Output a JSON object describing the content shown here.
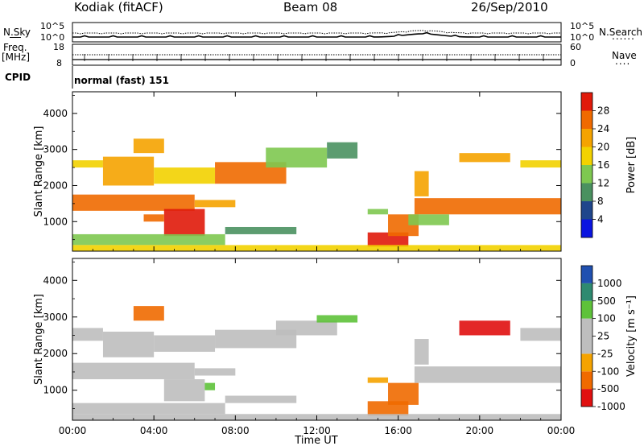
{
  "header": {
    "station": "Kodiak (fitACF)",
    "beam": "Beam 08",
    "date": "26/Sep/2010"
  },
  "top_panel": {
    "left_label": "N.Sky",
    "right_label": "N.Search",
    "left_ticks": [
      "10^5",
      "10^0"
    ],
    "right_ticks": [
      "10^5",
      "10^0"
    ]
  },
  "freq_panel": {
    "left_label_1": "Freq.",
    "left_label_2": "[MHz]",
    "right_label": "Nave",
    "left_ticks": [
      "18",
      "8"
    ],
    "right_ticks": [
      "60",
      "0"
    ]
  },
  "cpid": {
    "label": "CPID",
    "value": "normal (fast) 151"
  },
  "colors": {
    "power": [
      "#0a14e0",
      "#20468c",
      "#4a9160",
      "#7ec850",
      "#f2d200",
      "#f5a300",
      "#f06a00",
      "#e01a0a"
    ],
    "velocity": [
      "#e01010",
      "#f06a00",
      "#f5a300",
      "#bebebe",
      "#bebebe",
      "#5ec23a",
      "#2e8a70",
      "#2050b0"
    ],
    "gray": "#bebebe"
  },
  "chart_data": [
    {
      "type": "heatmap",
      "title": "",
      "ylabel": "Slant Range [km]",
      "xlabel": "",
      "xlim_hours": [
        0,
        24
      ],
      "ylim": [
        180,
        4600
      ],
      "y_ticks": [
        1000,
        2000,
        3000,
        4000
      ],
      "x_ticks": [
        "00:00",
        "04:00",
        "08:00",
        "12:00",
        "16:00",
        "20:00",
        "00:00"
      ],
      "colorbar": {
        "label": "Power [dB]",
        "ticks": [
          "28",
          "24",
          "20",
          "16",
          "12",
          "8",
          "4"
        ],
        "range": [
          0,
          32
        ]
      },
      "regions": [
        {
          "t0": 0.0,
          "t1": 6.0,
          "r0": 1300,
          "r1": 1750,
          "value": 24
        },
        {
          "t0": 6.0,
          "t1": 8.0,
          "r0": 1400,
          "r1": 1600,
          "value": 20
        },
        {
          "t0": 0.0,
          "t1": 1.5,
          "r0": 2500,
          "r1": 2700,
          "value": 16
        },
        {
          "t0": 1.5,
          "t1": 4.0,
          "r0": 2000,
          "r1": 2800,
          "value": 22
        },
        {
          "t0": 4.0,
          "t1": 7.0,
          "r0": 2050,
          "r1": 2500,
          "value": 18
        },
        {
          "t0": 7.0,
          "t1": 10.5,
          "r0": 2050,
          "r1": 2650,
          "value": 24
        },
        {
          "t0": 9.5,
          "t1": 12.5,
          "r0": 2500,
          "r1": 3050,
          "value": 14
        },
        {
          "t0": 12.5,
          "t1": 14.0,
          "r0": 2750,
          "r1": 3200,
          "value": 8
        },
        {
          "t0": 3.0,
          "t1": 4.5,
          "r0": 2900,
          "r1": 3300,
          "value": 20
        },
        {
          "t0": 4.5,
          "t1": 6.5,
          "r0": 600,
          "r1": 1350,
          "value": 28
        },
        {
          "t0": 3.5,
          "t1": 4.5,
          "r0": 1000,
          "r1": 1200,
          "value": 24
        },
        {
          "t0": 0.0,
          "t1": 7.5,
          "r0": 350,
          "r1": 650,
          "value": 12
        },
        {
          "t0": 7.5,
          "t1": 11.0,
          "r0": 650,
          "r1": 850,
          "value": 8
        },
        {
          "t0": 14.5,
          "t1": 16.5,
          "r0": 300,
          "r1": 700,
          "value": 28
        },
        {
          "t0": 15.5,
          "t1": 17.0,
          "r0": 600,
          "r1": 1200,
          "value": 26
        },
        {
          "t0": 14.5,
          "t1": 15.5,
          "r0": 1200,
          "r1": 1350,
          "value": 12
        },
        {
          "t0": 16.8,
          "t1": 17.5,
          "r0": 1700,
          "r1": 2400,
          "value": 20
        },
        {
          "t0": 16.8,
          "t1": 24.0,
          "r0": 1200,
          "r1": 1650,
          "value": 26
        },
        {
          "t0": 19.0,
          "t1": 21.5,
          "r0": 2650,
          "r1": 2900,
          "value": 20
        },
        {
          "t0": 22.0,
          "t1": 24.0,
          "r0": 2500,
          "r1": 2700,
          "value": 16
        },
        {
          "t0": 0.0,
          "t1": 24.0,
          "r0": 180,
          "r1": 350,
          "value": 16
        },
        {
          "t0": 16.5,
          "t1": 18.5,
          "r0": 900,
          "r1": 1200,
          "value": 14
        }
      ]
    },
    {
      "type": "heatmap",
      "title": "",
      "ylabel": "Slant Range [km]",
      "xlabel": "Time UT",
      "xlim_hours": [
        0,
        24
      ],
      "ylim": [
        180,
        4600
      ],
      "y_ticks": [
        1000,
        2000,
        3000,
        4000
      ],
      "x_ticks": [
        "00:00",
        "04:00",
        "08:00",
        "12:00",
        "16:00",
        "20:00",
        "00:00"
      ],
      "colorbar": {
        "label": "Velocity [m s⁻¹]",
        "ticks": [
          "1000",
          "500",
          "100",
          "25",
          "-25",
          "-100",
          "-500",
          "-1000"
        ],
        "range": [
          -1200,
          1200
        ]
      },
      "regions": [
        {
          "t0": 0.0,
          "t1": 6.0,
          "r0": 1300,
          "r1": 1750,
          "value": 0
        },
        {
          "t0": 6.0,
          "t1": 8.0,
          "r0": 1400,
          "r1": 1600,
          "value": 0
        },
        {
          "t0": 0.0,
          "t1": 1.5,
          "r0": 2350,
          "r1": 2700,
          "value": 0
        },
        {
          "t0": 1.5,
          "t1": 4.0,
          "r0": 1900,
          "r1": 2600,
          "value": 0
        },
        {
          "t0": 4.0,
          "t1": 7.0,
          "r0": 2050,
          "r1": 2500,
          "value": 0
        },
        {
          "t0": 7.0,
          "t1": 11.0,
          "r0": 2150,
          "r1": 2650,
          "value": 0
        },
        {
          "t0": 10.0,
          "t1": 13.0,
          "r0": 2500,
          "r1": 2900,
          "value": 0
        },
        {
          "t0": 3.0,
          "t1": 4.5,
          "r0": 2900,
          "r1": 3300,
          "value": -300
        },
        {
          "t0": 4.5,
          "t1": 6.5,
          "r0": 700,
          "r1": 1300,
          "value": 60
        },
        {
          "t0": 6.5,
          "t1": 7.0,
          "r0": 1000,
          "r1": 1200,
          "value": 300
        },
        {
          "t0": 0.0,
          "t1": 7.5,
          "r0": 350,
          "r1": 650,
          "value": 0
        },
        {
          "t0": 7.5,
          "t1": 11.0,
          "r0": 650,
          "r1": 850,
          "value": 0
        },
        {
          "t0": 14.5,
          "t1": 16.5,
          "r0": 300,
          "r1": 700,
          "value": -300
        },
        {
          "t0": 15.5,
          "t1": 17.0,
          "r0": 600,
          "r1": 1200,
          "value": -150
        },
        {
          "t0": 14.5,
          "t1": 15.5,
          "r0": 1200,
          "r1": 1350,
          "value": -80
        },
        {
          "t0": 16.8,
          "t1": 17.5,
          "r0": 1700,
          "r1": 2400,
          "value": 0
        },
        {
          "t0": 16.8,
          "t1": 24.0,
          "r0": 1200,
          "r1": 1650,
          "value": 0
        },
        {
          "t0": 19.0,
          "t1": 21.5,
          "r0": 2500,
          "r1": 2900,
          "value": -600
        },
        {
          "t0": 22.0,
          "t1": 24.0,
          "r0": 2350,
          "r1": 2700,
          "value": 0
        },
        {
          "t0": 0.0,
          "t1": 24.0,
          "r0": 180,
          "r1": 350,
          "value": 0
        },
        {
          "t0": 12.0,
          "t1": 14.0,
          "r0": 2850,
          "r1": 3050,
          "value": 300
        }
      ]
    }
  ]
}
